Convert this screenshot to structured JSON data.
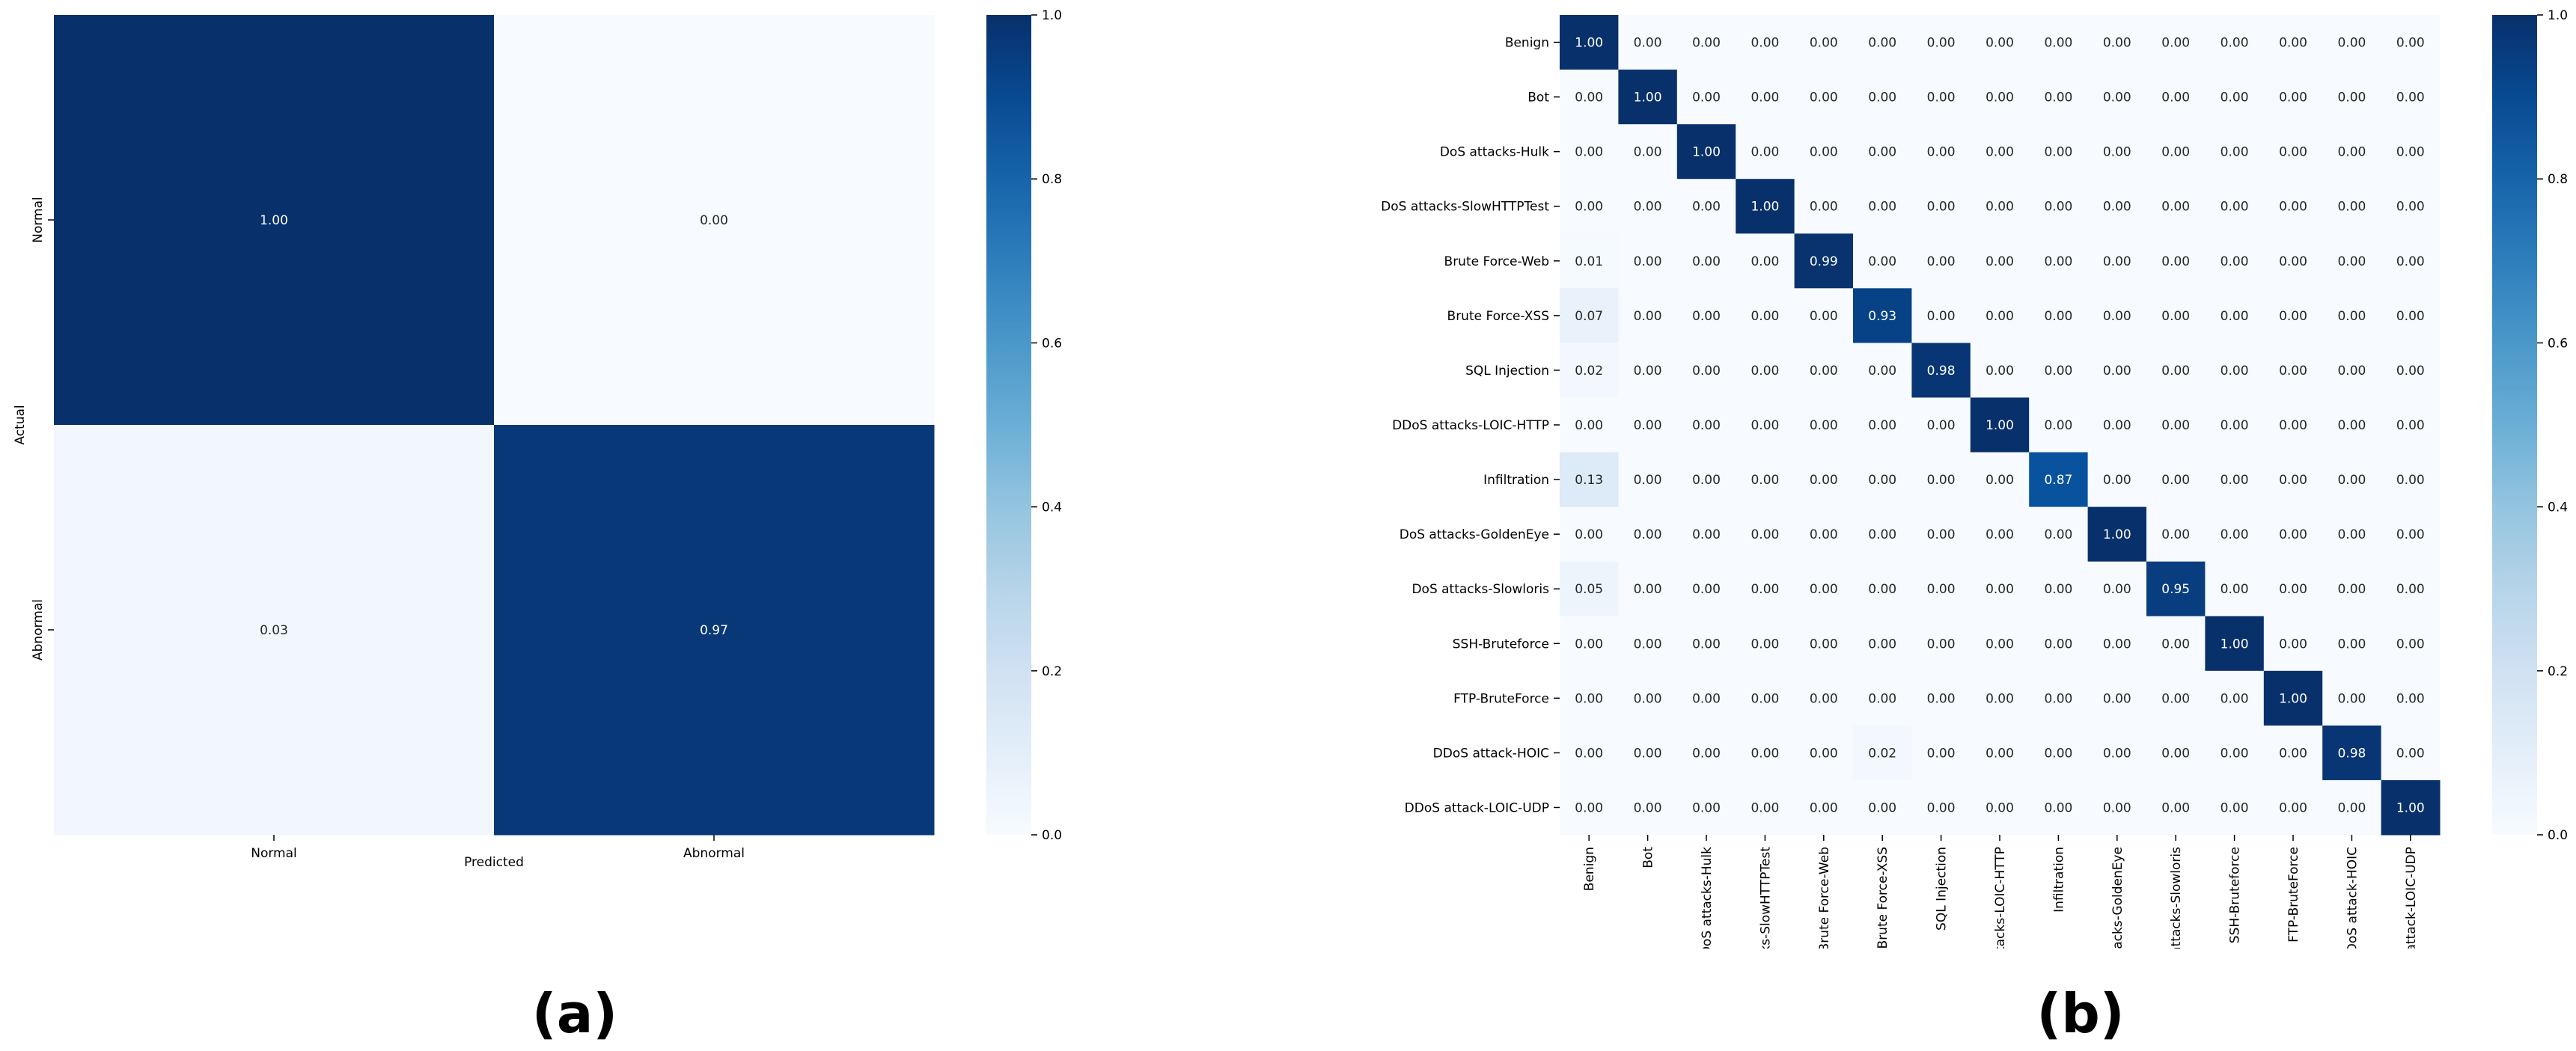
{
  "chart_data": [
    {
      "type": "heatmap",
      "panel_label": "(a)",
      "xlabel": "Predicted",
      "ylabel": "Actual",
      "x_categories": [
        "Normal",
        "Abnormal"
      ],
      "y_categories": [
        "Normal",
        "Abnormal"
      ],
      "values": [
        [
          1.0,
          0.0
        ],
        [
          0.03,
          0.97
        ]
      ],
      "value_labels": [
        [
          "1.00",
          "0.00"
        ],
        [
          "0.03",
          "0.97"
        ]
      ],
      "colormap": "Blues",
      "colorbar": {
        "range": [
          0.0,
          1.0
        ],
        "ticks": [
          "0.0",
          "0.2",
          "0.4",
          "0.6",
          "0.8",
          "1.0"
        ]
      }
    },
    {
      "type": "heatmap",
      "panel_label": "(b)",
      "xlabel": "",
      "ylabel": "",
      "categories": [
        "Benign",
        "Bot",
        "DoS attacks-Hulk",
        "DoS attacks-SlowHTTPTest",
        "Brute Force-Web",
        "Brute Force-XSS",
        "SQL Injection",
        "DDoS attacks-LOIC-HTTP",
        "Infiltration",
        "DoS attacks-GoldenEye",
        "DoS attacks-Slowloris",
        "SSH-Bruteforce",
        "FTP-BruteForce",
        "DDoS attack-HOIC",
        "DDoS attack-LOIC-UDP"
      ],
      "x_tick_labels_visible": [
        "Benign",
        "Bot",
        "DoS attacks-Hulk",
        "cks-SlowHTTPTest",
        "Brute Force-Web",
        "Brute Force-XSS",
        "SQL Injection",
        "ttacks-LOIC-HTTP",
        "Infiltration",
        "ttacks-GoldenEye",
        "attacks-Slowloris",
        "SSH-Bruteforce",
        "FTP-BruteForce",
        "DDoS attack-HOIC",
        "- attack-LOIC-UDP"
      ],
      "values": [
        [
          1.0,
          0,
          0,
          0,
          0,
          0,
          0,
          0,
          0,
          0,
          0,
          0,
          0,
          0,
          0
        ],
        [
          0,
          1.0,
          0,
          0,
          0,
          0,
          0,
          0,
          0,
          0,
          0,
          0,
          0,
          0,
          0
        ],
        [
          0,
          0,
          1.0,
          0,
          0,
          0,
          0,
          0,
          0,
          0,
          0,
          0,
          0,
          0,
          0
        ],
        [
          0,
          0,
          0,
          1.0,
          0,
          0,
          0,
          0,
          0,
          0,
          0,
          0,
          0,
          0,
          0
        ],
        [
          0.01,
          0,
          0,
          0,
          0.99,
          0,
          0,
          0,
          0,
          0,
          0,
          0,
          0,
          0,
          0
        ],
        [
          0.07,
          0,
          0,
          0,
          0,
          0.93,
          0,
          0,
          0,
          0,
          0,
          0,
          0,
          0,
          0
        ],
        [
          0.02,
          0,
          0,
          0,
          0,
          0,
          0.98,
          0,
          0,
          0,
          0,
          0,
          0,
          0,
          0
        ],
        [
          0,
          0,
          0,
          0,
          0,
          0,
          0,
          1.0,
          0,
          0,
          0,
          0,
          0,
          0,
          0
        ],
        [
          0.13,
          0,
          0,
          0,
          0,
          0,
          0,
          0,
          0.87,
          0,
          0,
          0,
          0,
          0,
          0
        ],
        [
          0,
          0,
          0,
          0,
          0,
          0,
          0,
          0,
          0,
          1.0,
          0,
          0,
          0,
          0,
          0
        ],
        [
          0.05,
          0,
          0,
          0,
          0,
          0,
          0,
          0,
          0,
          0,
          0.95,
          0,
          0,
          0,
          0
        ],
        [
          0,
          0,
          0,
          0,
          0,
          0,
          0,
          0,
          0,
          0,
          0,
          1.0,
          0,
          0,
          0
        ],
        [
          0,
          0,
          0,
          0,
          0,
          0,
          0,
          0,
          0,
          0,
          0,
          0,
          1.0,
          0,
          0
        ],
        [
          0,
          0,
          0,
          0,
          0,
          0.02,
          0,
          0,
          0,
          0,
          0,
          0,
          0,
          0.98,
          0
        ],
        [
          0,
          0,
          0,
          0,
          0,
          0,
          0,
          0,
          0,
          0,
          0,
          0,
          0,
          0,
          1.0
        ]
      ],
      "colormap": "Blues",
      "colorbar": {
        "range": [
          0.0,
          1.0
        ],
        "ticks": [
          "0.0",
          "0.2",
          "0.4",
          "0.6",
          "0.8",
          "1.0"
        ]
      }
    }
  ]
}
